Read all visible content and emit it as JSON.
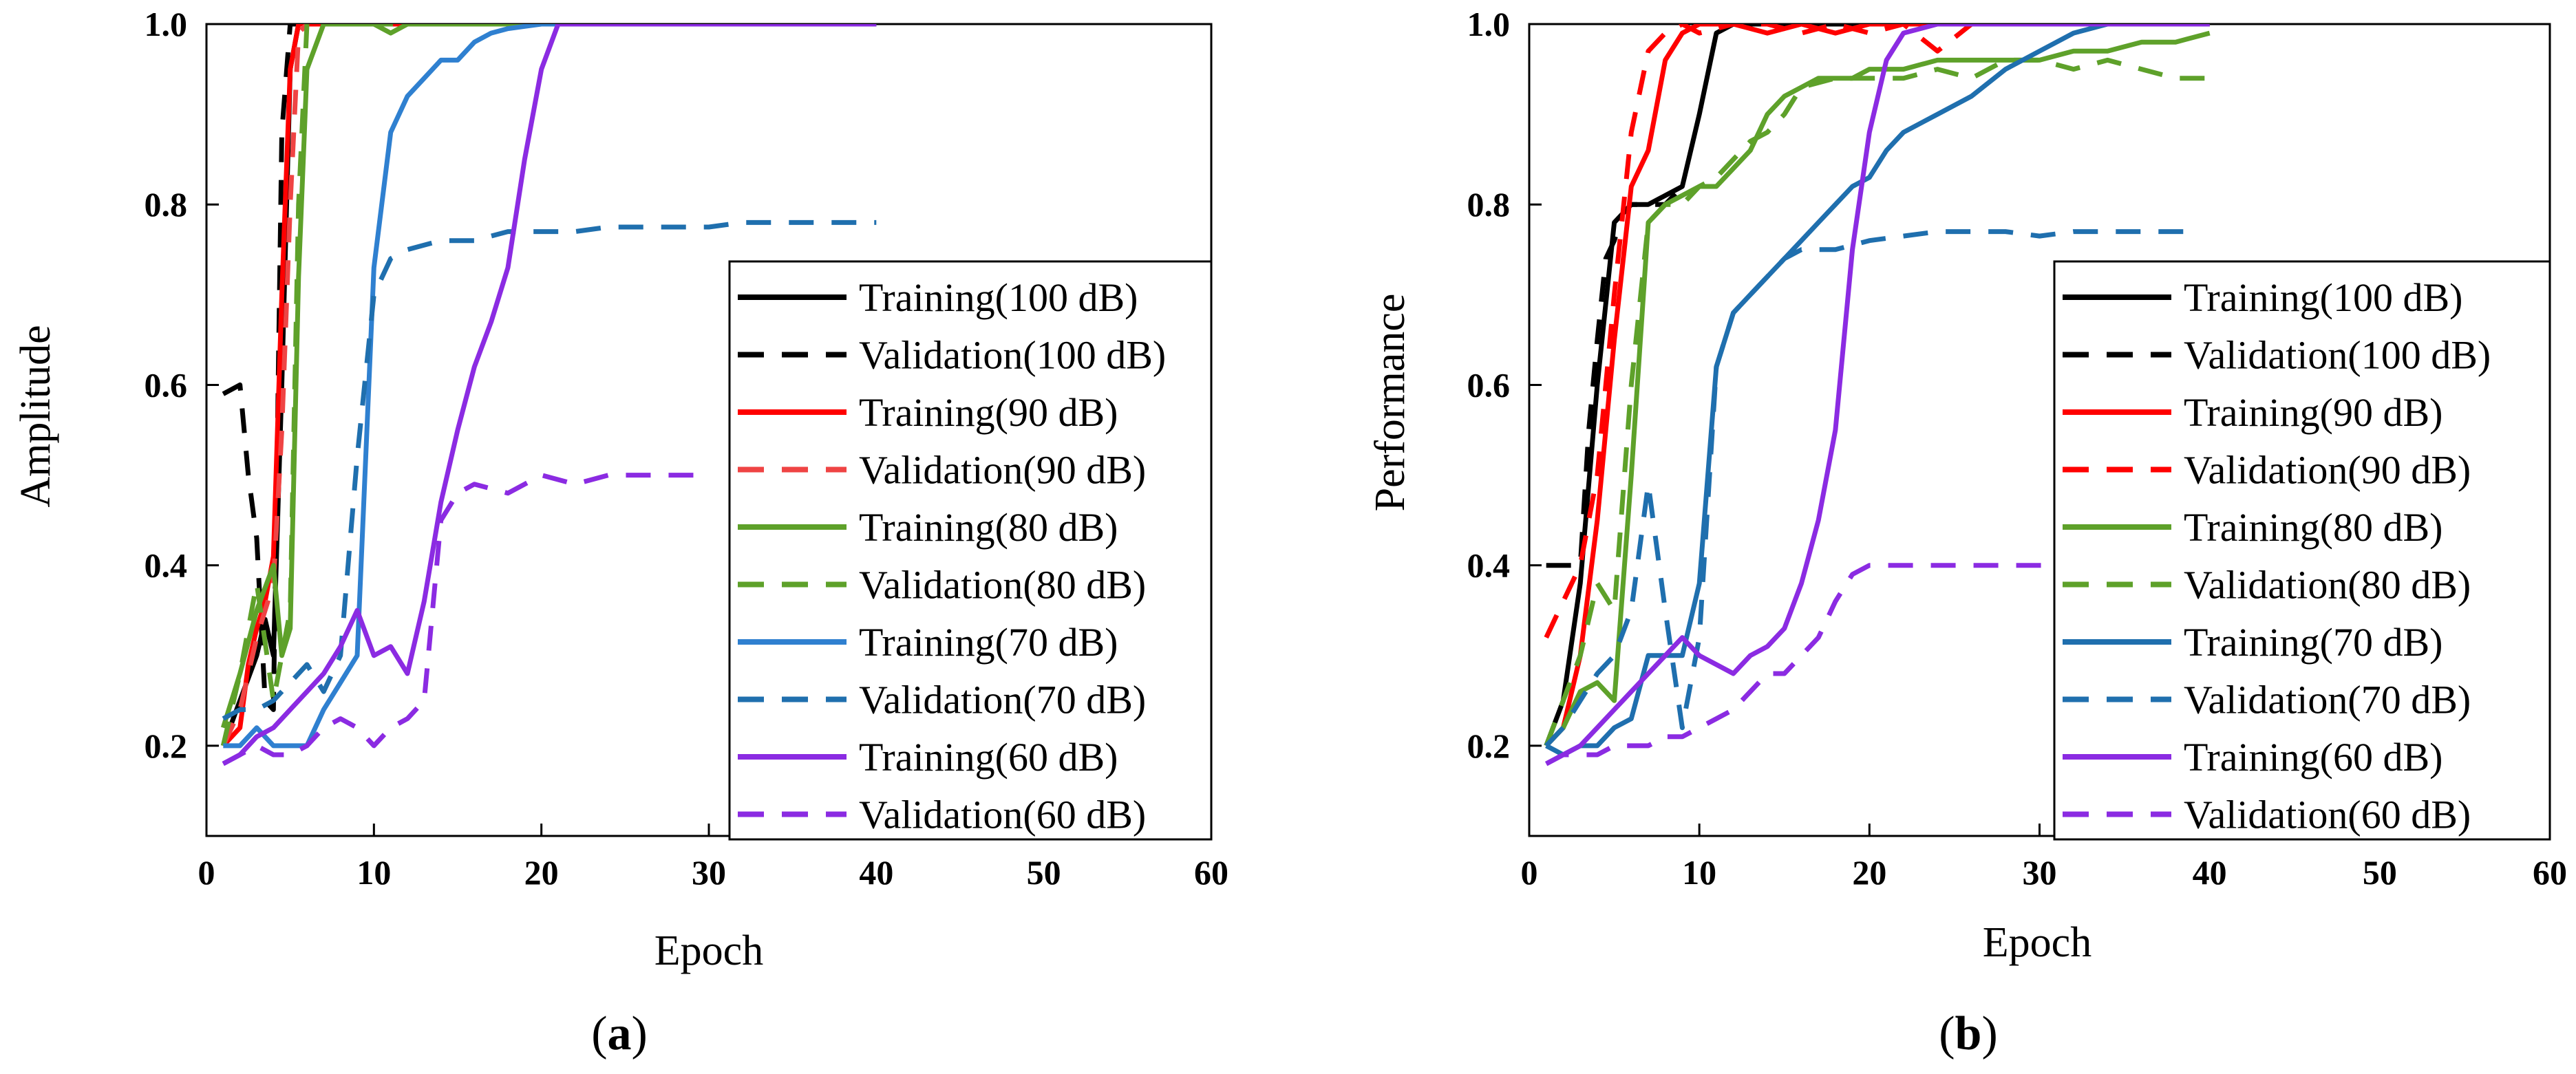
{
  "chart_data": [
    {
      "type": "line",
      "panel_label": {
        "open": "(",
        "letter": "a",
        "close": ")"
      },
      "xlabel": "Epoch",
      "ylabel": "Amplitude",
      "xlim": [
        0,
        60
      ],
      "ylim": [
        0.1,
        1.0
      ],
      "xticks": [
        "0",
        "10",
        "20",
        "30",
        "40",
        "50",
        "60"
      ],
      "yticks": [
        "0.2",
        "0.4",
        "0.6",
        "0.8",
        "1.0"
      ],
      "legend_position": "right",
      "series": [
        {
          "name": "Training(100 dB)",
          "color": "#000000",
          "dash": "solid",
          "x": [
            1,
            2,
            3,
            3.5,
            4,
            4.5,
            5,
            5.5,
            6,
            8,
            12,
            20,
            30,
            40
          ],
          "y": [
            0.2,
            0.25,
            0.3,
            0.34,
            0.3,
            0.6,
            0.95,
            1.0,
            1.0,
            1.0,
            1.0,
            1.0,
            1.0,
            1.0
          ]
        },
        {
          "name": "Validation(100 dB)",
          "color": "#000000",
          "dash": "dashed",
          "x": [
            1,
            2,
            2.5,
            3,
            3.5,
            4,
            4.5,
            5,
            5.5
          ],
          "y": [
            0.59,
            0.6,
            0.5,
            0.43,
            0.25,
            0.24,
            0.88,
            1.0,
            1.0
          ]
        },
        {
          "name": "Training(90 dB)",
          "color": "#ff0000",
          "dash": "solid",
          "x": [
            1,
            2,
            2.5,
            3,
            3.5,
            4,
            4.5,
            5,
            5.5,
            6,
            8,
            12,
            20,
            30,
            40
          ],
          "y": [
            0.2,
            0.22,
            0.29,
            0.33,
            0.36,
            0.41,
            0.7,
            0.95,
            1.0,
            1.0,
            1.0,
            1.0,
            1.0,
            1.0,
            1.0
          ]
        },
        {
          "name": "Validation(90 dB)",
          "color": "#ef4444",
          "dash": "dashed",
          "x": [
            1,
            2,
            3,
            4,
            4.5,
            5,
            5.5,
            6
          ],
          "y": [
            0.2,
            0.24,
            0.32,
            0.38,
            0.55,
            0.8,
            0.99,
            1.0
          ]
        },
        {
          "name": "Training(80 dB)",
          "color": "#5ea12a",
          "dash": "solid",
          "x": [
            1,
            2,
            3,
            4,
            4.5,
            5,
            5.5,
            6,
            7,
            8,
            10,
            11,
            12,
            14,
            20,
            30,
            40
          ],
          "y": [
            0.22,
            0.28,
            0.35,
            0.4,
            0.3,
            0.33,
            0.72,
            0.95,
            1.0,
            1.0,
            1.0,
            0.99,
            1.0,
            1.0,
            1.0,
            1.0,
            1.0
          ]
        },
        {
          "name": "Validation(80 dB)",
          "color": "#5ea12a",
          "dash": "dashed",
          "x": [
            1,
            2,
            3,
            4,
            4.5,
            5,
            5.5,
            6,
            7,
            10,
            20,
            30,
            40
          ],
          "y": [
            0.2,
            0.28,
            0.38,
            0.25,
            0.3,
            0.35,
            0.8,
            1.0,
            1.0,
            1.0,
            1.0,
            1.0,
            1.0
          ]
        },
        {
          "name": "Training(70 dB)",
          "color": "#2f80d0",
          "dash": "solid",
          "x": [
            1,
            2,
            3,
            4,
            5,
            6,
            7,
            8,
            9,
            10,
            11,
            12,
            13,
            14,
            15,
            16,
            17,
            18,
            20,
            22,
            30,
            40
          ],
          "y": [
            0.2,
            0.2,
            0.22,
            0.2,
            0.2,
            0.2,
            0.24,
            0.27,
            0.3,
            0.73,
            0.88,
            0.92,
            0.94,
            0.96,
            0.96,
            0.98,
            0.99,
            0.995,
            1.0,
            1.0,
            1.0,
            1.0
          ]
        },
        {
          "name": "Validation(70 dB)",
          "color": "#1f6fae",
          "dash": "dashed",
          "x": [
            1,
            2,
            3,
            4,
            5,
            6,
            7,
            8,
            9,
            10,
            11,
            12,
            14,
            16,
            18,
            20,
            22,
            24,
            26,
            28,
            30,
            32,
            34,
            36,
            38,
            40
          ],
          "y": [
            0.23,
            0.24,
            0.24,
            0.25,
            0.27,
            0.29,
            0.26,
            0.3,
            0.52,
            0.7,
            0.74,
            0.75,
            0.76,
            0.76,
            0.77,
            0.77,
            0.77,
            0.775,
            0.775,
            0.775,
            0.775,
            0.78,
            0.78,
            0.78,
            0.78,
            0.78
          ]
        },
        {
          "name": "Training(60 dB)",
          "color": "#8b2be2",
          "dash": "solid",
          "x": [
            1,
            2,
            3,
            4,
            5,
            6,
            7,
            8,
            9,
            10,
            11,
            12,
            13,
            14,
            15,
            16,
            17,
            18,
            19,
            20,
            21,
            22,
            25,
            30,
            35,
            40
          ],
          "y": [
            0.18,
            0.19,
            0.21,
            0.22,
            0.24,
            0.26,
            0.28,
            0.31,
            0.35,
            0.3,
            0.31,
            0.28,
            0.36,
            0.47,
            0.55,
            0.62,
            0.67,
            0.73,
            0.85,
            0.95,
            1.0,
            1.0,
            1.0,
            1.0,
            1.0,
            1.0
          ]
        },
        {
          "name": "Validation(60 dB)",
          "color": "#8b2be2",
          "dash": "dashed",
          "x": [
            1,
            2,
            3,
            4,
            5,
            6,
            7,
            8,
            9,
            10,
            11,
            12,
            13,
            14,
            15,
            16,
            18,
            20,
            22,
            24,
            26,
            28,
            30
          ],
          "y": [
            0.18,
            0.19,
            0.2,
            0.19,
            0.19,
            0.2,
            0.22,
            0.23,
            0.22,
            0.2,
            0.22,
            0.23,
            0.25,
            0.45,
            0.48,
            0.49,
            0.48,
            0.5,
            0.49,
            0.5,
            0.5,
            0.5,
            0.5
          ]
        }
      ]
    },
    {
      "type": "line",
      "panel_label": {
        "open": "(",
        "letter": "b",
        "close": ")"
      },
      "xlabel": "Epoch",
      "ylabel": "Performance",
      "xlim": [
        0,
        60
      ],
      "ylim": [
        0.1,
        1.0
      ],
      "xticks": [
        "0",
        "10",
        "20",
        "30",
        "40",
        "50",
        "60"
      ],
      "yticks": [
        "0.2",
        "0.4",
        "0.6",
        "0.8",
        "1.0"
      ],
      "legend_position": "right",
      "series": [
        {
          "name": "Training(100 dB)",
          "color": "#000000",
          "dash": "solid",
          "x": [
            1,
            2,
            3,
            4,
            5,
            6,
            7,
            8,
            9,
            10,
            11,
            12,
            14,
            20,
            30,
            40
          ],
          "y": [
            0.2,
            0.25,
            0.38,
            0.6,
            0.78,
            0.8,
            0.8,
            0.81,
            0.82,
            0.9,
            0.99,
            1.0,
            1.0,
            1.0,
            1.0,
            1.0
          ]
        },
        {
          "name": "Validation(100 dB)",
          "color": "#000000",
          "dash": "dashed",
          "x": [
            1,
            2,
            2.5,
            3,
            3.5,
            4,
            4.5,
            5,
            5.5,
            6,
            7,
            8,
            9
          ],
          "y": [
            0.4,
            0.4,
            0.4,
            0.4,
            0.55,
            0.65,
            0.74,
            0.76,
            0.79,
            0.8,
            0.8,
            0.8,
            0.82
          ]
        },
        {
          "name": "Training(90 dB)",
          "color": "#ff0000",
          "dash": "solid",
          "x": [
            1,
            2,
            3,
            4,
            5,
            6,
            7,
            8,
            9,
            10,
            12,
            14,
            16,
            18,
            20,
            22,
            25,
            30,
            35,
            40
          ],
          "y": [
            0.2,
            0.22,
            0.3,
            0.45,
            0.65,
            0.82,
            0.86,
            0.96,
            0.99,
            1.0,
            1.0,
            0.99,
            1.0,
            0.99,
            1.0,
            1.0,
            1.0,
            1.0,
            1.0,
            1.0
          ]
        },
        {
          "name": "Validation(90 dB)",
          "color": "#ff0000",
          "dash": "dashed",
          "x": [
            1,
            2,
            3,
            4,
            5,
            6,
            7,
            8,
            9,
            10,
            12,
            14,
            16,
            18,
            20,
            22,
            24,
            26,
            28,
            30
          ],
          "y": [
            0.32,
            0.36,
            0.4,
            0.5,
            0.7,
            0.88,
            0.97,
            0.99,
            1.0,
            0.99,
            1.0,
            1.0,
            0.99,
            1.0,
            0.99,
            1.0,
            0.97,
            1.0,
            1.0,
            1.0
          ]
        },
        {
          "name": "Training(80 dB)",
          "color": "#5ea12a",
          "dash": "solid",
          "x": [
            1,
            2,
            3,
            4,
            5,
            6,
            7,
            8,
            9,
            10,
            11,
            12,
            13,
            14,
            15,
            16,
            17,
            18,
            19,
            20,
            22,
            24,
            26,
            28,
            30,
            32,
            34,
            36,
            38,
            40
          ],
          "y": [
            0.2,
            0.22,
            0.26,
            0.27,
            0.25,
            0.5,
            0.78,
            0.8,
            0.81,
            0.82,
            0.82,
            0.84,
            0.86,
            0.9,
            0.92,
            0.93,
            0.94,
            0.94,
            0.94,
            0.95,
            0.95,
            0.96,
            0.96,
            0.96,
            0.96,
            0.97,
            0.97,
            0.98,
            0.98,
            0.99
          ]
        },
        {
          "name": "Validation(80 dB)",
          "color": "#5ea12a",
          "dash": "dashed",
          "x": [
            1,
            2,
            3,
            4,
            5,
            6,
            7,
            8,
            9,
            10,
            11,
            12,
            13,
            14,
            15,
            16,
            18,
            20,
            22,
            24,
            26,
            28,
            30,
            32,
            34,
            36,
            38,
            40
          ],
          "y": [
            0.2,
            0.25,
            0.3,
            0.38,
            0.35,
            0.6,
            0.78,
            0.8,
            0.8,
            0.82,
            0.83,
            0.85,
            0.87,
            0.88,
            0.9,
            0.93,
            0.94,
            0.94,
            0.94,
            0.95,
            0.94,
            0.96,
            0.96,
            0.95,
            0.96,
            0.95,
            0.94,
            0.94
          ]
        },
        {
          "name": "Training(70 dB)",
          "color": "#1f6fae",
          "dash": "solid",
          "x": [
            1,
            2,
            3,
            4,
            5,
            6,
            7,
            8,
            9,
            10,
            11,
            12,
            13,
            14,
            15,
            16,
            17,
            18,
            19,
            20,
            21,
            22,
            23,
            24,
            25,
            26,
            28,
            30,
            32,
            34,
            36,
            38,
            40
          ],
          "y": [
            0.2,
            0.19,
            0.2,
            0.2,
            0.22,
            0.23,
            0.3,
            0.3,
            0.3,
            0.38,
            0.62,
            0.68,
            0.7,
            0.72,
            0.74,
            0.76,
            0.78,
            0.8,
            0.82,
            0.83,
            0.86,
            0.88,
            0.89,
            0.9,
            0.91,
            0.92,
            0.95,
            0.97,
            0.99,
            1.0,
            1.0,
            1.0,
            1.0
          ]
        },
        {
          "name": "Validation(70 dB)",
          "color": "#1f6fae",
          "dash": "dashed",
          "x": [
            1,
            2,
            3,
            4,
            5,
            6,
            7,
            8,
            9,
            10,
            11,
            12,
            13,
            14,
            15,
            16,
            18,
            20,
            22,
            24,
            26,
            28,
            30,
            32,
            34,
            36,
            38,
            39
          ],
          "y": [
            0.2,
            0.22,
            0.25,
            0.28,
            0.3,
            0.35,
            0.49,
            0.35,
            0.22,
            0.32,
            0.62,
            0.68,
            0.7,
            0.72,
            0.74,
            0.75,
            0.75,
            0.76,
            0.765,
            0.77,
            0.77,
            0.77,
            0.765,
            0.77,
            0.77,
            0.77,
            0.77,
            0.77
          ]
        },
        {
          "name": "Training(60 dB)",
          "color": "#8b2be2",
          "dash": "solid",
          "x": [
            1,
            2,
            3,
            4,
            5,
            6,
            7,
            8,
            9,
            10,
            11,
            12,
            13,
            14,
            15,
            16,
            17,
            18,
            19,
            20,
            21,
            22,
            24,
            26,
            28,
            30,
            35,
            40
          ],
          "y": [
            0.18,
            0.19,
            0.2,
            0.22,
            0.24,
            0.26,
            0.28,
            0.3,
            0.32,
            0.3,
            0.29,
            0.28,
            0.3,
            0.31,
            0.33,
            0.38,
            0.45,
            0.55,
            0.75,
            0.88,
            0.96,
            0.99,
            1.0,
            1.0,
            1.0,
            1.0,
            1.0,
            1.0
          ]
        },
        {
          "name": "Validation(60 dB)",
          "color": "#8b2be2",
          "dash": "dashed",
          "x": [
            1,
            2,
            3,
            4,
            5,
            6,
            7,
            8,
            9,
            10,
            11,
            12,
            13,
            14,
            15,
            16,
            17,
            18,
            19,
            20,
            22,
            24,
            26,
            28,
            30,
            32
          ],
          "y": [
            0.18,
            0.19,
            0.19,
            0.19,
            0.2,
            0.2,
            0.2,
            0.21,
            0.21,
            0.22,
            0.23,
            0.24,
            0.26,
            0.28,
            0.28,
            0.3,
            0.32,
            0.36,
            0.39,
            0.4,
            0.4,
            0.4,
            0.4,
            0.4,
            0.4,
            0.4
          ]
        }
      ]
    }
  ]
}
